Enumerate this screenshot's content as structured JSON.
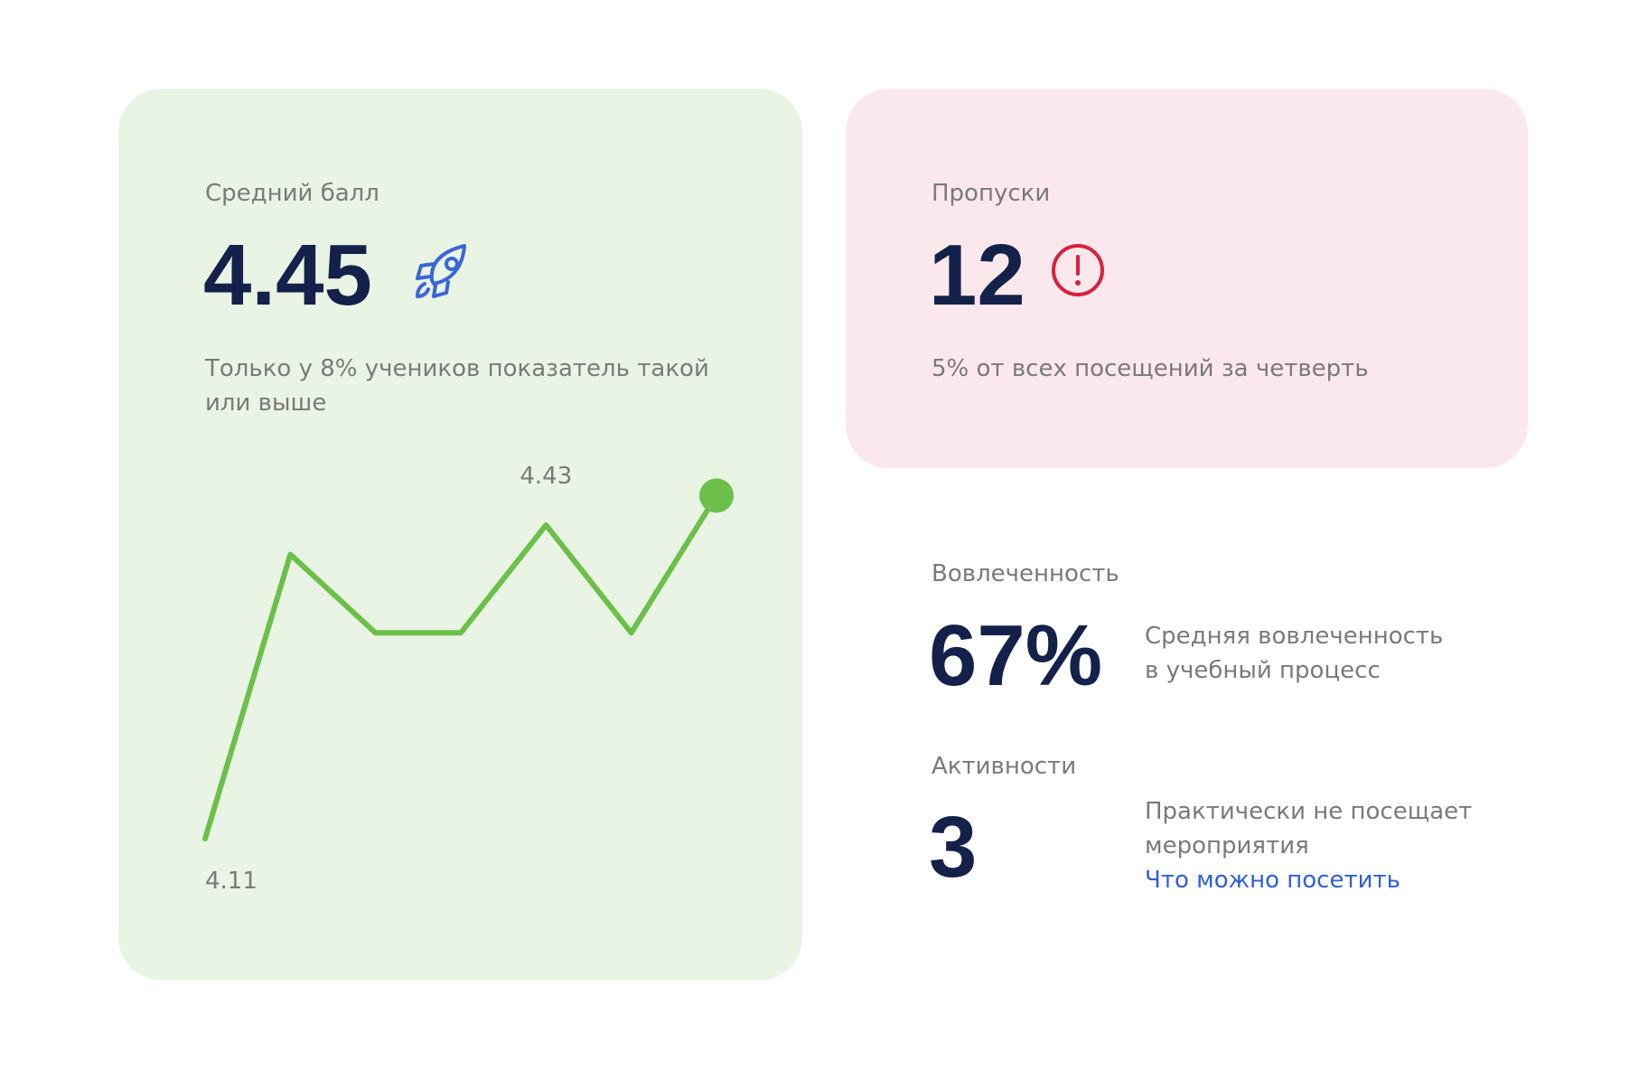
{
  "cards": {
    "grade": {
      "label": "Средний балл",
      "value": "4.45",
      "description": [
        "Только у 8% учеников показатель такой",
        "или выше"
      ]
    },
    "absences": {
      "label": "Пропуски",
      "value": "12",
      "description": "5% от всех посещений за четверть"
    },
    "engagement": {
      "label": "Вовлеченность",
      "value": "67%",
      "description": [
        "Средняя вовлеченность",
        "в учебный процесс"
      ]
    },
    "activities": {
      "label": "Активности",
      "value": "3",
      "description": [
        "Практически не посещает",
        "мероприятия"
      ],
      "link": "Что можно посетить"
    }
  },
  "chart_data": {
    "type": "line",
    "values": [
      4.11,
      4.4,
      4.32,
      4.32,
      4.43,
      4.32,
      4.46
    ],
    "ylim": [
      4.1,
      4.5
    ],
    "color": "#6cc04a"
  }
}
